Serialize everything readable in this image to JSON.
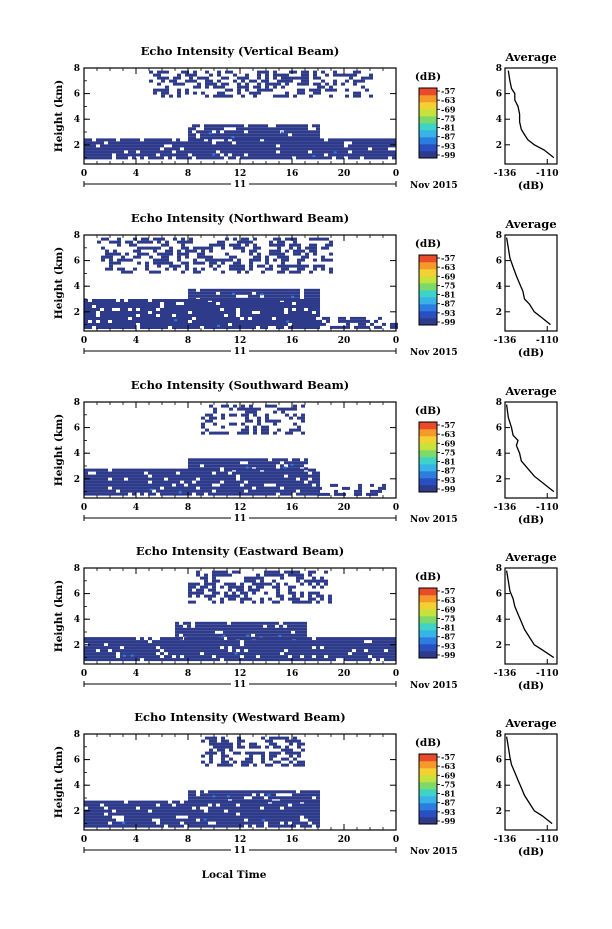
{
  "figure": {
    "xlabel": "Local Time",
    "day_label": "11",
    "month_label": "Nov 2015",
    "cb_unit": "(dB)",
    "avg_title": "Average",
    "avg_xlabel": "(dB)"
  },
  "colorscale": [
    "#2e3a8a",
    "#2a4fc0",
    "#2c7de0",
    "#37b3e8",
    "#3fd3c8",
    "#7cd96a",
    "#c7e23c",
    "#f3d132",
    "#f59a2a",
    "#e84a2a"
  ],
  "chart_data": [
    {
      "type": "heatmap",
      "title": "Echo Intensity (Vertical Beam)",
      "ylabel": "Height (km)",
      "xlim": [
        0,
        24
      ],
      "ylim": [
        0.5,
        8
      ],
      "xticks": [
        "0",
        "4",
        "8",
        "12",
        "16",
        "20",
        "0"
      ],
      "yticks": [
        "2",
        "4",
        "6",
        "8"
      ],
      "colorbar_ticks": [
        "-57",
        "-63",
        "-69",
        "-75",
        "-81",
        "-87",
        "-93",
        "-99"
      ],
      "colorbar_range": [
        -99,
        -57
      ],
      "echo_regions": [
        {
          "x": [
            0,
            24
          ],
          "y": [
            0.9,
            2.5
          ],
          "value": -98
        },
        {
          "x": [
            8,
            18
          ],
          "y": [
            2.5,
            3.6
          ],
          "value": -98
        },
        {
          "x": [
            5,
            22
          ],
          "y": [
            5.8,
            7.8
          ],
          "value": -98,
          "sparse": true
        }
      ],
      "average_profile": {
        "title": "Average",
        "xlabel": "(dB)",
        "xticks": [
          "-136",
          "-110"
        ],
        "yticks": [
          "2",
          "4",
          "6",
          "8"
        ],
        "xlim": [
          -136,
          -104
        ],
        "ylim": [
          0.5,
          8
        ],
        "x": [
          -134,
          -133,
          -132,
          -130,
          -130,
          -128,
          -127,
          -127,
          -126,
          -124,
          -122,
          -118,
          -112,
          -106
        ],
        "y": [
          7.8,
          7.0,
          6.4,
          6.0,
          5.5,
          5.0,
          4.4,
          3.8,
          3.2,
          2.8,
          2.4,
          2.0,
          1.6,
          1.0
        ]
      }
    },
    {
      "type": "heatmap",
      "title": "Echo Intensity (Northward Beam)",
      "ylabel": "Height (km)",
      "xlim": [
        0,
        24
      ],
      "ylim": [
        0.5,
        8
      ],
      "xticks": [
        "0",
        "4",
        "8",
        "12",
        "16",
        "20",
        "0"
      ],
      "yticks": [
        "2",
        "4",
        "6",
        "8"
      ],
      "colorbar_ticks": [
        "-57",
        "-63",
        "-69",
        "-75",
        "-81",
        "-87",
        "-93",
        "-99"
      ],
      "colorbar_range": [
        -99,
        -57
      ],
      "echo_regions": [
        {
          "x": [
            0,
            18
          ],
          "y": [
            0.8,
            3.0
          ],
          "value": -98
        },
        {
          "x": [
            8,
            18
          ],
          "y": [
            3.0,
            3.8
          ],
          "value": -98
        },
        {
          "x": [
            18,
            24
          ],
          "y": [
            0.8,
            1.6
          ],
          "value": -98,
          "sparse": true
        },
        {
          "x": [
            1,
            19
          ],
          "y": [
            5.0,
            7.8
          ],
          "value": -98,
          "sparse": true
        }
      ],
      "average_profile": {
        "title": "Average",
        "xlabel": "(dB)",
        "xticks": [
          "-136",
          "-110"
        ],
        "yticks": [
          "2",
          "4",
          "6",
          "8"
        ],
        "xlim": [
          -136,
          -104
        ],
        "ylim": [
          0.5,
          8
        ],
        "x": [
          -135,
          -134,
          -133,
          -131,
          -129,
          -127,
          -125,
          -124,
          -121,
          -118,
          -114,
          -108
        ],
        "y": [
          7.8,
          7.0,
          6.2,
          5.5,
          4.8,
          4.2,
          3.6,
          3.0,
          2.6,
          2.0,
          1.6,
          1.0
        ]
      }
    },
    {
      "type": "heatmap",
      "title": "Echo Intensity (Southward Beam)",
      "ylabel": "Height (km)",
      "xlim": [
        0,
        24
      ],
      "ylim": [
        0.5,
        8
      ],
      "xticks": [
        "0",
        "4",
        "8",
        "12",
        "16",
        "20",
        "0"
      ],
      "yticks": [
        "2",
        "4",
        "6",
        "8"
      ],
      "colorbar_ticks": [
        "-57",
        "-63",
        "-69",
        "-75",
        "-81",
        "-87",
        "-93",
        "-99"
      ],
      "colorbar_range": [
        -99,
        -57
      ],
      "echo_regions": [
        {
          "x": [
            0,
            18
          ],
          "y": [
            0.8,
            2.8
          ],
          "value": -98
        },
        {
          "x": [
            8,
            17
          ],
          "y": [
            2.8,
            3.6
          ],
          "value": -98
        },
        {
          "x": [
            18,
            23
          ],
          "y": [
            0.8,
            1.6
          ],
          "value": -98,
          "sparse": true
        },
        {
          "x": [
            9,
            17
          ],
          "y": [
            5.6,
            7.8
          ],
          "value": -98,
          "sparse": true
        }
      ],
      "average_profile": {
        "title": "Average",
        "xlabel": "(dB)",
        "xticks": [
          "-136",
          "-110"
        ],
        "yticks": [
          "2",
          "4",
          "6",
          "8"
        ],
        "xlim": [
          -136,
          -104
        ],
        "ylim": [
          0.5,
          8
        ],
        "x": [
          -135,
          -134,
          -132,
          -131,
          -128,
          -129,
          -127,
          -126,
          -122,
          -118,
          -112,
          -106
        ],
        "y": [
          7.8,
          6.8,
          6.0,
          5.4,
          5.0,
          4.6,
          4.0,
          3.4,
          2.8,
          2.2,
          1.6,
          1.0
        ]
      }
    },
    {
      "type": "heatmap",
      "title": "Echo Intensity (Eastward Beam)",
      "ylabel": "Height (km)",
      "xlim": [
        0,
        24
      ],
      "ylim": [
        0.5,
        8
      ],
      "xticks": [
        "0",
        "4",
        "8",
        "12",
        "16",
        "20",
        "0"
      ],
      "yticks": [
        "2",
        "4",
        "6",
        "8"
      ],
      "colorbar_ticks": [
        "-57",
        "-63",
        "-69",
        "-75",
        "-81",
        "-87",
        "-93",
        "-99"
      ],
      "colorbar_range": [
        -99,
        -57
      ],
      "echo_regions": [
        {
          "x": [
            0,
            24
          ],
          "y": [
            0.9,
            2.6
          ],
          "value": -98
        },
        {
          "x": [
            7,
            17
          ],
          "y": [
            2.6,
            3.8
          ],
          "value": -98
        },
        {
          "x": [
            8,
            19
          ],
          "y": [
            5.4,
            7.8
          ],
          "value": -98,
          "sparse": true
        }
      ],
      "average_profile": {
        "title": "Average",
        "xlabel": "(dB)",
        "xticks": [
          "-136",
          "-110"
        ],
        "yticks": [
          "2",
          "4",
          "6",
          "8"
        ],
        "xlim": [
          -136,
          -104
        ],
        "ylim": [
          0.5,
          8
        ],
        "x": [
          -135,
          -134,
          -133,
          -131,
          -130,
          -128,
          -126,
          -124,
          -121,
          -118,
          -113,
          -106
        ],
        "y": [
          7.8,
          7.0,
          6.2,
          5.6,
          5.0,
          4.4,
          3.8,
          3.2,
          2.6,
          2.0,
          1.6,
          1.0
        ]
      }
    },
    {
      "type": "heatmap",
      "title": "Echo Intensity (Westward Beam)",
      "ylabel": "Height (km)",
      "xlim": [
        0,
        24
      ],
      "ylim": [
        0.5,
        8
      ],
      "xticks": [
        "0",
        "4",
        "8",
        "12",
        "16",
        "20",
        "0"
      ],
      "yticks": [
        "2",
        "4",
        "6",
        "8"
      ],
      "colorbar_ticks": [
        "-57",
        "-63",
        "-69",
        "-75",
        "-81",
        "-87",
        "-93",
        "-99"
      ],
      "colorbar_range": [
        -99,
        -57
      ],
      "echo_regions": [
        {
          "x": [
            0,
            18
          ],
          "y": [
            0.9,
            2.8
          ],
          "value": -98
        },
        {
          "x": [
            8,
            18
          ],
          "y": [
            2.8,
            3.6
          ],
          "value": -98
        },
        {
          "x": [
            9,
            17
          ],
          "y": [
            5.6,
            7.8
          ],
          "value": -98,
          "sparse": true
        }
      ],
      "average_profile": {
        "title": "Average",
        "xlabel": "(dB)",
        "xticks": [
          "-136",
          "-110"
        ],
        "yticks": [
          "2",
          "4",
          "6",
          "8"
        ],
        "xlim": [
          -136,
          -104
        ],
        "ylim": [
          0.5,
          8
        ],
        "x": [
          -135,
          -134,
          -133,
          -132,
          -130,
          -128,
          -126,
          -124,
          -121,
          -118,
          -113,
          -107
        ],
        "y": [
          7.8,
          7.0,
          6.2,
          5.6,
          5.0,
          4.4,
          3.8,
          3.2,
          2.6,
          2.0,
          1.6,
          1.0
        ]
      }
    }
  ]
}
